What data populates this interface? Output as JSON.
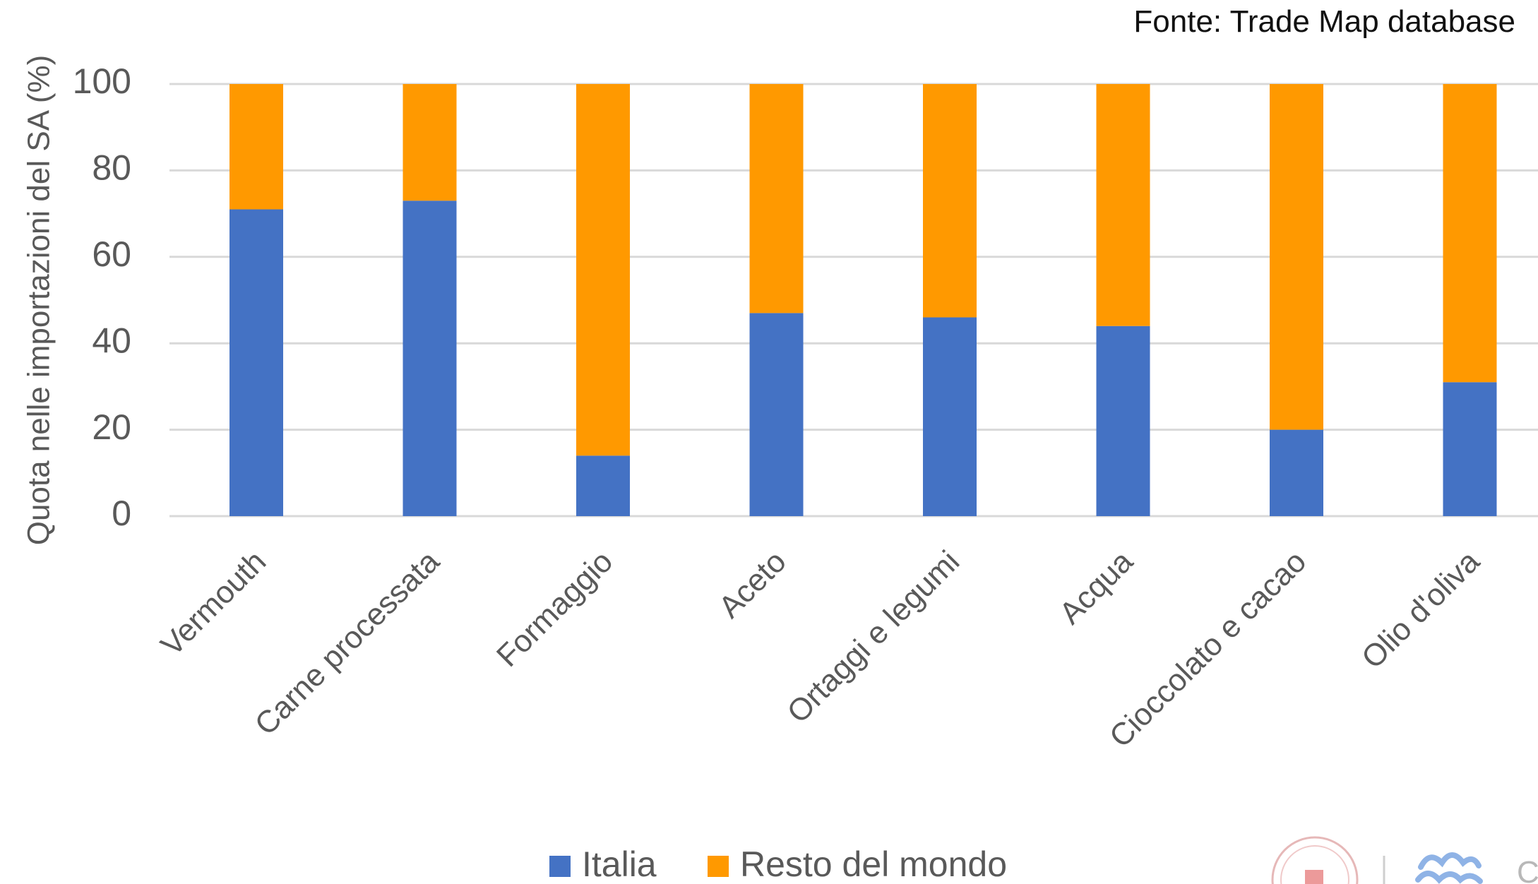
{
  "source_note": "Fonte: Trade Map database",
  "colors": {
    "italia": "#4472c4",
    "resto": "#ff9900",
    "grid": "#d9d9d9",
    "axis_text": "#595959"
  },
  "chart_data": {
    "type": "bar",
    "stacked": true,
    "title": "",
    "xlabel": "",
    "ylabel": "Quota nelle importazioni del SA (%)",
    "ylim": [
      0,
      100
    ],
    "yticks": [
      0,
      20,
      40,
      60,
      80,
      100
    ],
    "grid": true,
    "legend_position": "bottom",
    "categories": [
      "Vermouth",
      "Carne processata",
      "Formaggio",
      "Aceto",
      "Ortaggi e legumi",
      "Acqua",
      "Cioccolato e cacao",
      "Olio d'oliva"
    ],
    "series": [
      {
        "name": "Italia",
        "color": "#4472c4",
        "values": [
          71,
          73,
          14,
          47,
          46,
          44,
          20,
          31
        ]
      },
      {
        "name": "Resto del mondo",
        "color": "#ff9900",
        "values": [
          29,
          27,
          86,
          53,
          54,
          56,
          80,
          69
        ]
      }
    ]
  }
}
